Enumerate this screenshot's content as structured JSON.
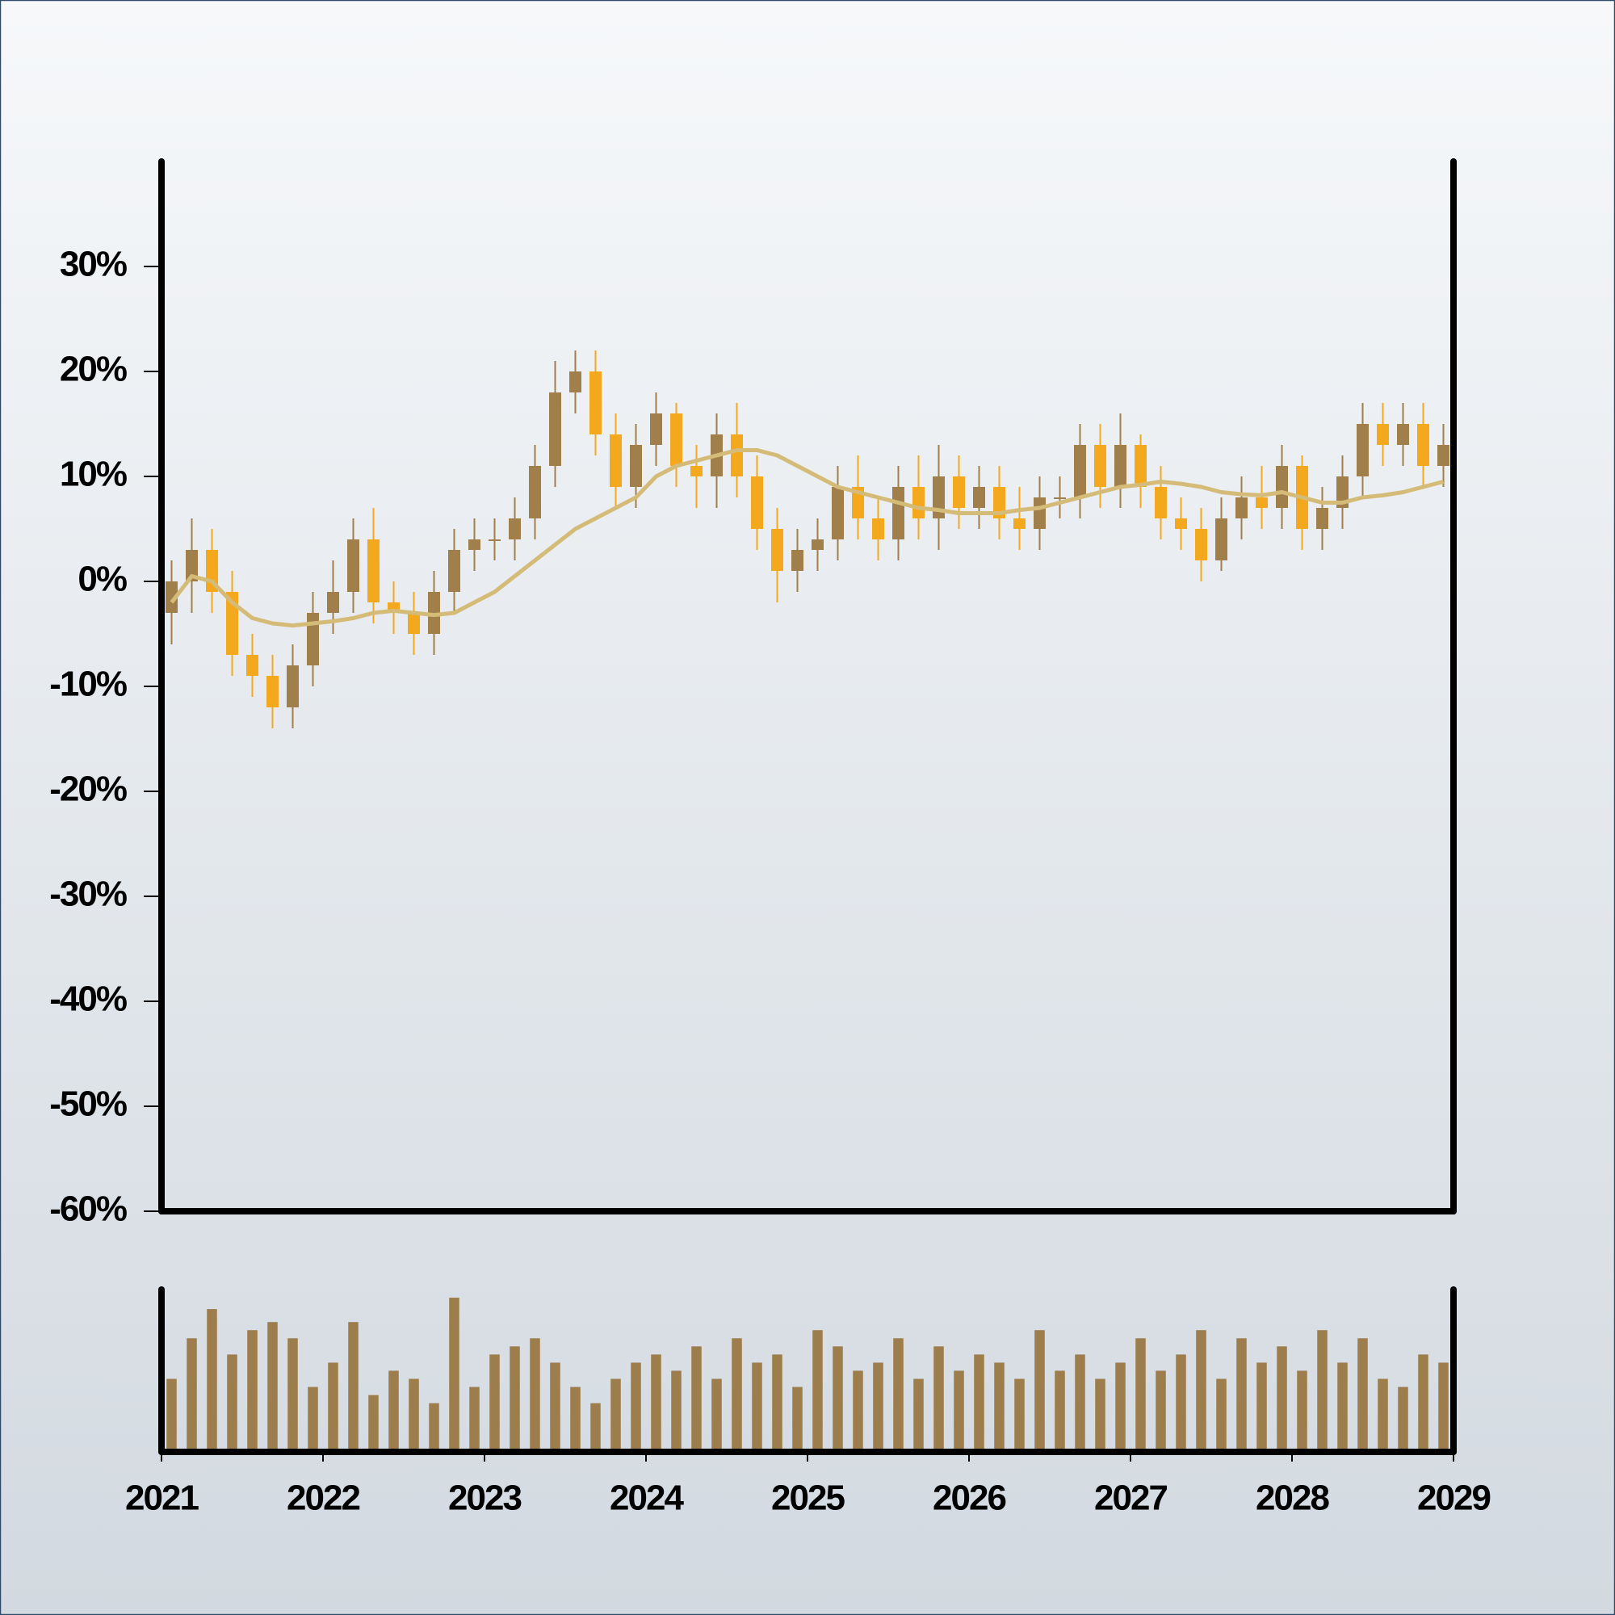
{
  "chart_data": {
    "type": "candlestick",
    "x": [
      2021.0625,
      2021.1875,
      2021.3125,
      2021.4375,
      2021.5625,
      2021.6875,
      2021.8125,
      2021.9375,
      2022.0625,
      2022.1875,
      2022.3125,
      2022.4375,
      2022.5625,
      2022.6875,
      2022.8125,
      2022.9375,
      2023.0625,
      2023.1875,
      2023.3125,
      2023.4375,
      2023.5625,
      2023.6875,
      2023.8125,
      2023.9375,
      2024.0625,
      2024.1875,
      2024.3125,
      2024.4375,
      2024.5625,
      2024.6875,
      2024.8125,
      2024.9375,
      2025.0625,
      2025.1875,
      2025.3125,
      2025.4375,
      2025.5625,
      2025.6875,
      2025.8125,
      2025.9375,
      2026.0625,
      2026.1875,
      2026.3125,
      2026.4375,
      2026.5625,
      2026.6875,
      2026.8125,
      2026.9375,
      2027.0625,
      2027.1875,
      2027.3125,
      2027.4375,
      2027.5625,
      2027.6875,
      2027.8125,
      2027.9375,
      2028.0625,
      2028.1875,
      2028.3125,
      2028.4375,
      2028.5625,
      2028.6875,
      2028.8125,
      2028.9375
    ],
    "open": [
      -3,
      0,
      3,
      -1,
      -7,
      -9,
      -12,
      -8,
      -3,
      -1,
      4,
      -2,
      -3,
      -5,
      -1,
      3,
      4,
      4,
      6,
      11,
      18,
      20,
      14,
      9,
      13,
      16,
      11,
      10,
      14,
      10,
      5,
      1,
      3,
      4,
      9,
      6,
      4,
      9,
      6,
      10,
      7,
      9,
      6,
      5,
      8,
      8,
      13,
      9,
      13,
      9,
      6,
      5,
      2,
      6,
      8,
      7,
      11,
      5,
      7,
      10,
      15,
      13,
      15,
      11
    ],
    "high": [
      2,
      6,
      5,
      1,
      -5,
      -7,
      -6,
      -1,
      2,
      6,
      7,
      0,
      -1,
      1,
      5,
      6,
      6,
      8,
      13,
      21,
      22,
      22,
      16,
      15,
      18,
      17,
      13,
      16,
      17,
      12,
      7,
      5,
      6,
      11,
      12,
      8,
      11,
      12,
      13,
      12,
      11,
      11,
      9,
      10,
      10,
      15,
      15,
      16,
      14,
      11,
      8,
      7,
      8,
      10,
      11,
      13,
      12,
      9,
      12,
      17,
      17,
      17,
      17,
      15
    ],
    "low": [
      -6,
      -3,
      -3,
      -9,
      -11,
      -14,
      -14,
      -10,
      -5,
      -3,
      -4,
      -5,
      -7,
      -7,
      -3,
      1,
      2,
      2,
      4,
      9,
      16,
      12,
      7,
      7,
      11,
      9,
      7,
      7,
      8,
      3,
      -2,
      -1,
      1,
      2,
      4,
      2,
      2,
      4,
      3,
      5,
      5,
      4,
      3,
      3,
      6,
      6,
      7,
      7,
      7,
      4,
      3,
      0,
      1,
      4,
      5,
      5,
      3,
      3,
      5,
      8,
      11,
      11,
      9,
      9
    ],
    "close": [
      0,
      3,
      -1,
      -7,
      -9,
      -12,
      -8,
      -3,
      -1,
      4,
      -2,
      -3,
      -5,
      -1,
      3,
      4,
      4,
      6,
      11,
      18,
      20,
      14,
      9,
      13,
      16,
      11,
      10,
      14,
      10,
      5,
      1,
      3,
      4,
      9,
      6,
      4,
      9,
      6,
      10,
      7,
      9,
      6,
      5,
      8,
      8,
      13,
      9,
      13,
      9,
      6,
      5,
      2,
      6,
      8,
      7,
      11,
      5,
      7,
      10,
      15,
      13,
      15,
      11,
      13
    ],
    "up_color": "#a07f4a",
    "down_color": "#f4a81d",
    "moving_average": {
      "color": "#d4bb78",
      "values": [
        -2,
        0.5,
        0,
        -2,
        -3.5,
        -4,
        -4.2,
        -4,
        -3.8,
        -3.5,
        -3,
        -2.8,
        -3,
        -3.2,
        -3,
        -2,
        -1,
        0.5,
        2,
        3.5,
        5,
        6,
        7,
        8,
        10,
        11,
        11.5,
        12,
        12.5,
        12.5,
        12,
        11,
        10,
        9,
        8.5,
        8,
        7.5,
        7,
        6.8,
        6.5,
        6.5,
        6.5,
        6.8,
        7,
        7.5,
        8,
        8.5,
        9,
        9.2,
        9.5,
        9.3,
        9,
        8.5,
        8.3,
        8.2,
        8.5,
        8,
        7.5,
        7.5,
        8,
        8.2,
        8.5,
        9,
        9.5
      ]
    },
    "volume": {
      "color": "#9c7d4b",
      "ylim": [
        0,
        100
      ],
      "values": [
        45,
        70,
        88,
        60,
        75,
        80,
        70,
        40,
        55,
        80,
        35,
        50,
        45,
        30,
        95,
        40,
        60,
        65,
        70,
        55,
        40,
        30,
        45,
        55,
        60,
        50,
        65,
        45,
        70,
        55,
        60,
        40,
        75,
        65,
        50,
        55,
        70,
        45,
        65,
        50,
        60,
        55,
        45,
        75,
        50,
        60,
        45,
        55,
        70,
        50,
        60,
        75,
        45,
        70,
        55,
        65,
        50,
        75,
        55,
        70,
        45,
        40,
        60,
        55
      ]
    },
    "xlim": [
      2021,
      2029
    ],
    "xticks": [
      2021,
      2022,
      2023,
      2024,
      2025,
      2026,
      2027,
      2028,
      2029
    ],
    "ylim": [
      -60,
      40
    ],
    "yticks": [
      {
        "value": -60,
        "label": "-60%"
      },
      {
        "value": -50,
        "label": "-50%"
      },
      {
        "value": -40,
        "label": "-40%"
      },
      {
        "value": -30,
        "label": "-30%"
      },
      {
        "value": -20,
        "label": "-20%"
      },
      {
        "value": -10,
        "label": "-10%"
      },
      {
        "value": 0,
        "label": "0%"
      },
      {
        "value": 10,
        "label": "10%"
      },
      {
        "value": 20,
        "label": "20%"
      },
      {
        "value": 30,
        "label": "30%"
      }
    ]
  }
}
